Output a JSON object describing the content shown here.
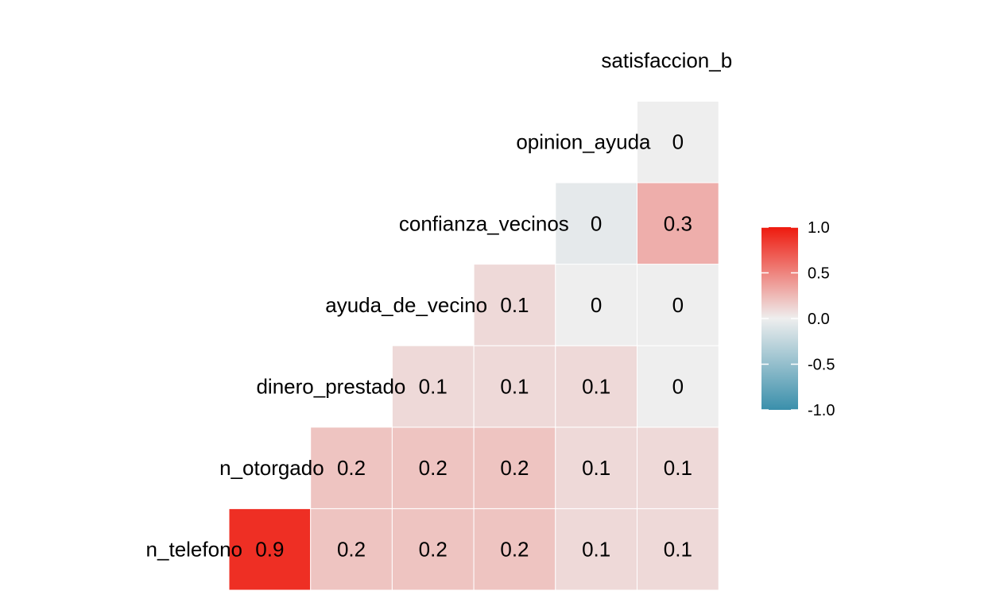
{
  "chart_data": {
    "type": "heatmap",
    "subtype": "lower-triangle correlation matrix",
    "variables": [
      "n_telefono",
      "n_otorgado",
      "dinero_prestado",
      "ayuda_de_vecino",
      "confianza_vecinos",
      "opinion_ayuda",
      "satisfaccion_b"
    ],
    "cells": [
      {
        "row": "n_telefono",
        "col": "n_otorgado",
        "value": 0.9,
        "label": "0.9"
      },
      {
        "row": "n_telefono",
        "col": "dinero_prestado",
        "value": 0.2,
        "label": "0.2"
      },
      {
        "row": "n_telefono",
        "col": "ayuda_de_vecino",
        "value": 0.2,
        "label": "0.2"
      },
      {
        "row": "n_telefono",
        "col": "confianza_vecinos",
        "value": 0.2,
        "label": "0.2"
      },
      {
        "row": "n_telefono",
        "col": "opinion_ayuda",
        "value": 0.1,
        "label": "0.1"
      },
      {
        "row": "n_telefono",
        "col": "satisfaccion_b",
        "value": 0.1,
        "label": "0.1"
      },
      {
        "row": "n_otorgado",
        "col": "dinero_prestado",
        "value": 0.2,
        "label": "0.2"
      },
      {
        "row": "n_otorgado",
        "col": "ayuda_de_vecino",
        "value": 0.2,
        "label": "0.2"
      },
      {
        "row": "n_otorgado",
        "col": "confianza_vecinos",
        "value": 0.2,
        "label": "0.2"
      },
      {
        "row": "n_otorgado",
        "col": "opinion_ayuda",
        "value": 0.1,
        "label": "0.1"
      },
      {
        "row": "n_otorgado",
        "col": "satisfaccion_b",
        "value": 0.1,
        "label": "0.1"
      },
      {
        "row": "dinero_prestado",
        "col": "ayuda_de_vecino",
        "value": 0.1,
        "label": "0.1"
      },
      {
        "row": "dinero_prestado",
        "col": "confianza_vecinos",
        "value": 0.1,
        "label": "0.1"
      },
      {
        "row": "dinero_prestado",
        "col": "opinion_ayuda",
        "value": 0.1,
        "label": "0.1"
      },
      {
        "row": "dinero_prestado",
        "col": "satisfaccion_b",
        "value": 0.0,
        "label": "0"
      },
      {
        "row": "ayuda_de_vecino",
        "col": "confianza_vecinos",
        "value": 0.1,
        "label": "0.1"
      },
      {
        "row": "ayuda_de_vecino",
        "col": "opinion_ayuda",
        "value": 0.0,
        "label": "0"
      },
      {
        "row": "ayuda_de_vecino",
        "col": "satisfaccion_b",
        "value": 0.0,
        "label": "0"
      },
      {
        "row": "confianza_vecinos",
        "col": "opinion_ayuda",
        "value": -0.05,
        "label": "0"
      },
      {
        "row": "confianza_vecinos",
        "col": "satisfaccion_b",
        "value": 0.3,
        "label": "0.3"
      },
      {
        "row": "opinion_ayuda",
        "col": "satisfaccion_b",
        "value": 0.0,
        "label": "0"
      }
    ],
    "legend": {
      "position": "right",
      "range": [
        -1.0,
        1.0
      ],
      "ticks": [
        "1.0",
        "0.5",
        "0.0",
        "-0.5",
        "-1.0"
      ],
      "colors": {
        "low": "#3A8FAB",
        "mid": "#EEEEEE",
        "high": "#EE1A0E"
      }
    },
    "grid": false
  }
}
